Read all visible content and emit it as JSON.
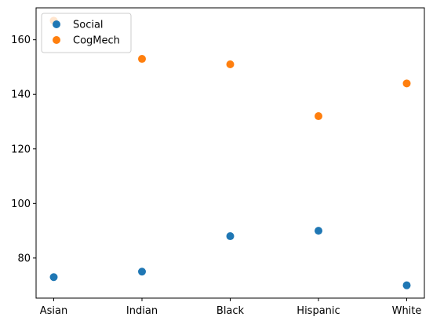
{
  "chart_data": {
    "type": "scatter",
    "categories": [
      "Asian",
      "Indian",
      "Black",
      "Hispanic",
      "White"
    ],
    "series": [
      {
        "name": "Social",
        "color": "#1f77b4",
        "values": [
          73,
          75,
          88,
          90,
          70
        ]
      },
      {
        "name": "CogMech",
        "color": "#ff7f0e",
        "values": [
          167,
          153,
          151,
          132,
          144
        ]
      }
    ],
    "ylim": [
      65.3,
      171.7
    ],
    "yticks": [
      80,
      100,
      120,
      140,
      160
    ],
    "title": "",
    "xlabel": "",
    "ylabel": "",
    "grid": false,
    "legend": {
      "placement": "top-left"
    }
  }
}
